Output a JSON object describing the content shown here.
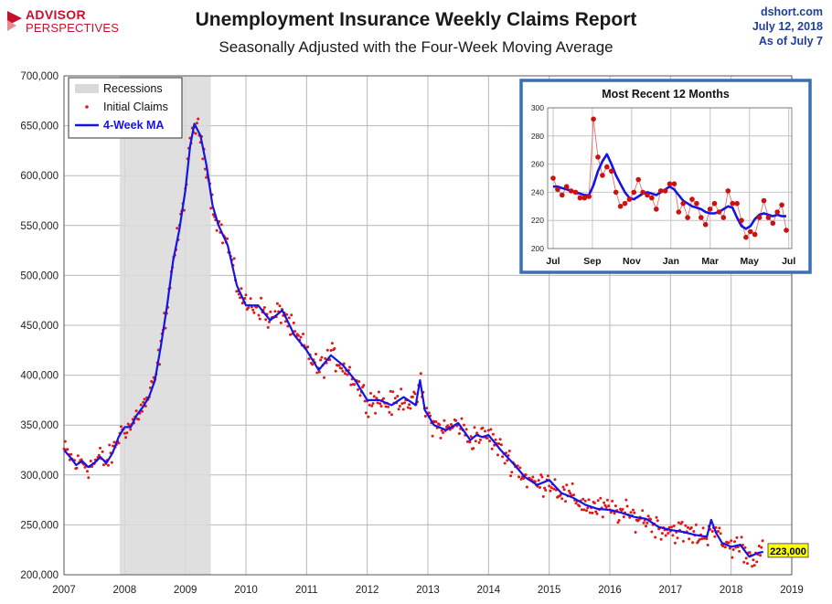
{
  "header": {
    "logo_line1": "ADVISOR",
    "logo_line2": "PERSPECTIVES",
    "title": "Unemployment Insurance Weekly Claims Report",
    "subtitle": "Seasonally Adjusted with the Four-Week Moving Average",
    "source_site": "dshort.com",
    "source_date": "July 12, 2018",
    "source_asof": "As of July 7"
  },
  "colors": {
    "ma_line": "#1414e6",
    "claims_dots": "#e01818",
    "recession": "#d9d9d9",
    "inset_border": "#3a6fb0",
    "callout_bg": "#ffff00",
    "logo": "#c8102e"
  },
  "chart_data": [
    {
      "type": "line",
      "title": "",
      "xlabel": "",
      "ylabel": "",
      "x_ticks": [
        "2007",
        "2008",
        "2009",
        "2010",
        "2011",
        "2012",
        "2013",
        "2014",
        "2015",
        "2016",
        "2017",
        "2018",
        "2019"
      ],
      "xlim": [
        2007.0,
        2019.0
      ],
      "y_ticks": [
        "200,000",
        "250,000",
        "300,000",
        "350,000",
        "400,000",
        "450,000",
        "500,000",
        "550,000",
        "600,000",
        "650,000",
        "700,000"
      ],
      "ylim": [
        200000,
        700000
      ],
      "grid": true,
      "legend": {
        "placement": "top-left",
        "entries": [
          "Recessions",
          "Initial Claims",
          "4-Week MA"
        ]
      },
      "recession": {
        "start": 2007.92,
        "end": 2009.42,
        "label": "Recessions"
      },
      "series": [
        {
          "name": "4-Week MA",
          "x": [
            2007.0,
            2007.1,
            2007.2,
            2007.3,
            2007.4,
            2007.5,
            2007.6,
            2007.7,
            2007.8,
            2007.9,
            2008.0,
            2008.1,
            2008.2,
            2008.3,
            2008.4,
            2008.5,
            2008.6,
            2008.7,
            2008.8,
            2008.9,
            2009.0,
            2009.08,
            2009.15,
            2009.25,
            2009.35,
            2009.45,
            2009.55,
            2009.7,
            2009.85,
            2010.0,
            2010.2,
            2010.4,
            2010.6,
            2010.8,
            2011.0,
            2011.2,
            2011.4,
            2011.6,
            2011.8,
            2012.0,
            2012.2,
            2012.4,
            2012.6,
            2012.8,
            2012.87,
            2012.95,
            2013.1,
            2013.3,
            2013.5,
            2013.7,
            2013.8,
            2013.9,
            2014.0,
            2014.2,
            2014.4,
            2014.6,
            2014.8,
            2015.0,
            2015.2,
            2015.4,
            2015.6,
            2015.8,
            2016.0,
            2016.2,
            2016.4,
            2016.6,
            2016.8,
            2017.0,
            2017.2,
            2017.4,
            2017.6,
            2017.67,
            2017.75,
            2017.85,
            2018.0,
            2018.15,
            2018.3,
            2018.45,
            2018.53
          ],
          "y": [
            325000,
            318000,
            310000,
            314000,
            308000,
            312000,
            318000,
            312000,
            322000,
            338000,
            348000,
            348000,
            360000,
            368000,
            378000,
            395000,
            430000,
            470000,
            515000,
            545000,
            585000,
            630000,
            652000,
            640000,
            610000,
            570000,
            550000,
            530000,
            490000,
            470000,
            470000,
            455000,
            465000,
            440000,
            425000,
            405000,
            420000,
            410000,
            395000,
            375000,
            375000,
            370000,
            378000,
            370000,
            395000,
            365000,
            350000,
            345000,
            352000,
            335000,
            340000,
            338000,
            340000,
            325000,
            312000,
            298000,
            290000,
            295000,
            282000,
            277000,
            270000,
            266000,
            265000,
            262000,
            258000,
            256000,
            248000,
            245000,
            243000,
            240000,
            238000,
            255000,
            242000,
            232000,
            228000,
            230000,
            218000,
            222000,
            223000
          ]
        },
        {
          "name": "Initial Claims",
          "note": "scatter points generated along the 4-week MA with spread",
          "spread": 9000
        }
      ],
      "annotations": [
        {
          "label": "223,000",
          "x": 2018.53,
          "y": 223000
        }
      ]
    },
    {
      "type": "line",
      "title": "Most Recent 12 Months",
      "x_ticks": [
        "Jul",
        "Sep",
        "Nov",
        "Jan",
        "Mar",
        "May",
        "Jul"
      ],
      "ylim": [
        200,
        300
      ],
      "y_ticks": [
        "200",
        "220",
        "240",
        "260",
        "280",
        "300"
      ],
      "grid": true,
      "weeks": 53,
      "series": [
        {
          "name": "4-Week MA",
          "values": [
            244,
            244,
            243,
            242,
            241,
            240,
            239,
            238,
            238,
            245,
            255,
            262,
            267,
            260,
            252,
            246,
            240,
            236,
            235,
            237,
            239,
            240,
            239,
            238,
            240,
            242,
            244,
            242,
            238,
            234,
            232,
            230,
            229,
            228,
            226,
            225,
            225,
            226,
            228,
            230,
            229,
            222,
            216,
            214,
            216,
            221,
            224,
            225,
            224,
            223,
            224,
            223,
            223
          ]
        },
        {
          "name": "Initial Claims",
          "values": [
            250,
            242,
            238,
            244,
            241,
            240,
            236,
            236,
            237,
            292,
            265,
            252,
            258,
            255,
            240,
            230,
            232,
            235,
            240,
            249,
            240,
            238,
            236,
            228,
            241,
            241,
            246,
            246,
            226,
            232,
            222,
            235,
            232,
            222,
            217,
            228,
            232,
            226,
            222,
            241,
            232,
            232,
            220,
            208,
            212,
            210,
            222,
            234,
            222,
            218,
            226,
            231,
            213
          ]
        }
      ]
    }
  ]
}
